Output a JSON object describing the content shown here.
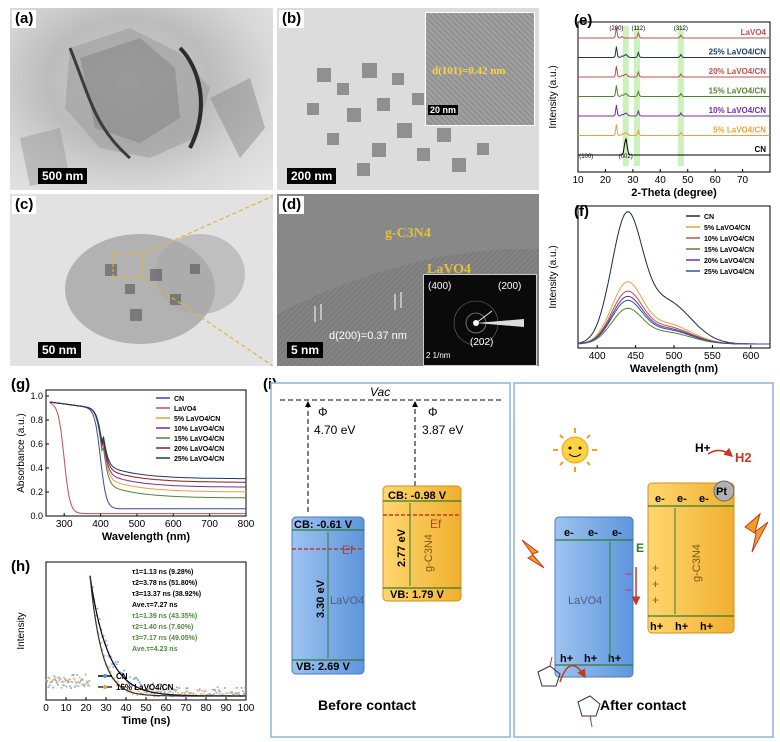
{
  "panels": {
    "a": {
      "label": "(a)",
      "scale": "500 nm"
    },
    "b": {
      "label": "(b)",
      "scale": "200 nm",
      "inset_scale": "20 nm",
      "inset_text": "d(101)=0.42 nm"
    },
    "c": {
      "label": "(c)",
      "scale": "50 nm"
    },
    "d": {
      "label": "(d)",
      "scale": "5 nm",
      "gcn": "g-C3N4",
      "lavo": "LaVO4",
      "d200": "d(200)=0.37 nm",
      "saed": [
        "(400)",
        "(200)",
        "(202)"
      ],
      "saed_scale": "2 1/nm"
    },
    "e": {
      "label": "(e)"
    },
    "f": {
      "label": "(f)"
    },
    "g": {
      "label": "(g)"
    },
    "h": {
      "label": "(h)"
    },
    "i": {
      "label": "(i)"
    }
  },
  "chart_data": [
    {
      "id": "e",
      "type": "line",
      "xlabel": "2-Theta (degree)",
      "ylabel": "Intensity (a.u.)",
      "xlim": [
        10,
        80
      ],
      "xticks": [
        10,
        20,
        30,
        40,
        50,
        60,
        70
      ],
      "series_names": [
        "LaVO4",
        "25% LaVO4/CN",
        "20% LaVO4/CN",
        "15% LaVO4/CN",
        "10% LaVO4/CN",
        "5% LaVO4/CN",
        "CN"
      ],
      "colors": [
        "#c0504d",
        "#1f3864",
        "#c0504d",
        "#548235",
        "#7030a0",
        "#e8a040",
        "#000000"
      ],
      "peak_labels": [
        {
          "x": 24,
          "t": "(200)"
        },
        {
          "x": 32,
          "t": "(112)"
        },
        {
          "x": 47.5,
          "t": "(312)"
        },
        {
          "x": 13,
          "t": "(100)"
        },
        {
          "x": 27.4,
          "t": "(002)"
        }
      ]
    },
    {
      "id": "f",
      "type": "line",
      "xlabel": "Wavelength (nm)",
      "ylabel": "Intensity (a.u.)",
      "xlim": [
        375,
        625
      ],
      "xticks": [
        400,
        450,
        500,
        550,
        600
      ],
      "legend": [
        "CN",
        "5%  LaVO4/CN",
        "10%  LaVO4/CN",
        "15%  LaVO4/CN",
        "20%  LaVO4/CN",
        "25%  LaVO4/CN"
      ],
      "colors": [
        "#1f2a44",
        "#e8a040",
        "#c0504d",
        "#548235",
        "#7030a0",
        "#2f5597"
      ],
      "peak_heights": [
        1.0,
        0.47,
        0.4,
        0.27,
        0.36,
        0.33
      ],
      "peak_x": 438
    },
    {
      "id": "g",
      "type": "line",
      "xlabel": "Wavelength (nm)",
      "ylabel": "Absorbance (a.u.)",
      "xlim": [
        250,
        800
      ],
      "ylim": [
        0,
        1.05
      ],
      "xticks": [
        300,
        400,
        500,
        600,
        700,
        800
      ],
      "yticks": [
        0.0,
        0.2,
        0.4,
        0.6,
        0.8,
        1.0
      ],
      "legend": [
        "CN",
        "LaVO4",
        "5% LaVO4/CN",
        "10% LaVO4/CN",
        "15% LaVO4/CN",
        "20% LaVO4/CN",
        "25% LaVO4/CN"
      ],
      "colors": [
        "#3f48a8",
        "#c0504d",
        "#e8a040",
        "#7030a0",
        "#548235",
        "#8b1a1a",
        "#1f3864"
      ]
    },
    {
      "id": "h",
      "type": "line",
      "xlabel": "Time (ns)",
      "ylabel": "Intensity",
      "xlim": [
        0,
        100
      ],
      "xticks": [
        0,
        10,
        20,
        30,
        40,
        50,
        60,
        70,
        80,
        90,
        100
      ],
      "legend": [
        "CN",
        "15% LaVO4/CN"
      ],
      "colors": [
        "#4a90e2",
        "#e0a050"
      ],
      "fit_cn": [
        "τ1=1.13 ns (9.28%)",
        "τ2=3.78 ns (51.80%)",
        "τ3=13.37 ns (38.92%)",
        "Ave.τ=7.27 ns"
      ],
      "fit_15": [
        "τ1=1.39 ns (43.35%)",
        "τ2=1.40 ns (7.60%)",
        "τ3=7.17 ns (49.05%)",
        "Ave.τ=4.23 ns"
      ]
    }
  ],
  "diagram_i": {
    "vac": "Vac",
    "phi": "Φ",
    "phi_lavo": "4.70 eV",
    "phi_gcn": "3.87 eV",
    "lavo_cb": "CB: -0.61 V",
    "lavo_vb": "VB: 2.69 V",
    "lavo_gap": "3.30 eV",
    "lavo_name": "LaVO4",
    "gcn_cb": "CB: -0.98 V",
    "gcn_vb": "VB: 1.79 V",
    "gcn_gap": "2.77 eV",
    "gcn_name": "g-C3N4",
    "ef": "Ef",
    "before": "Before contact",
    "after": "After contact",
    "e_field": "E",
    "pt": "Pt",
    "hplus": "H+",
    "h2": "H2",
    "electron": "e-",
    "hole": "h+"
  }
}
